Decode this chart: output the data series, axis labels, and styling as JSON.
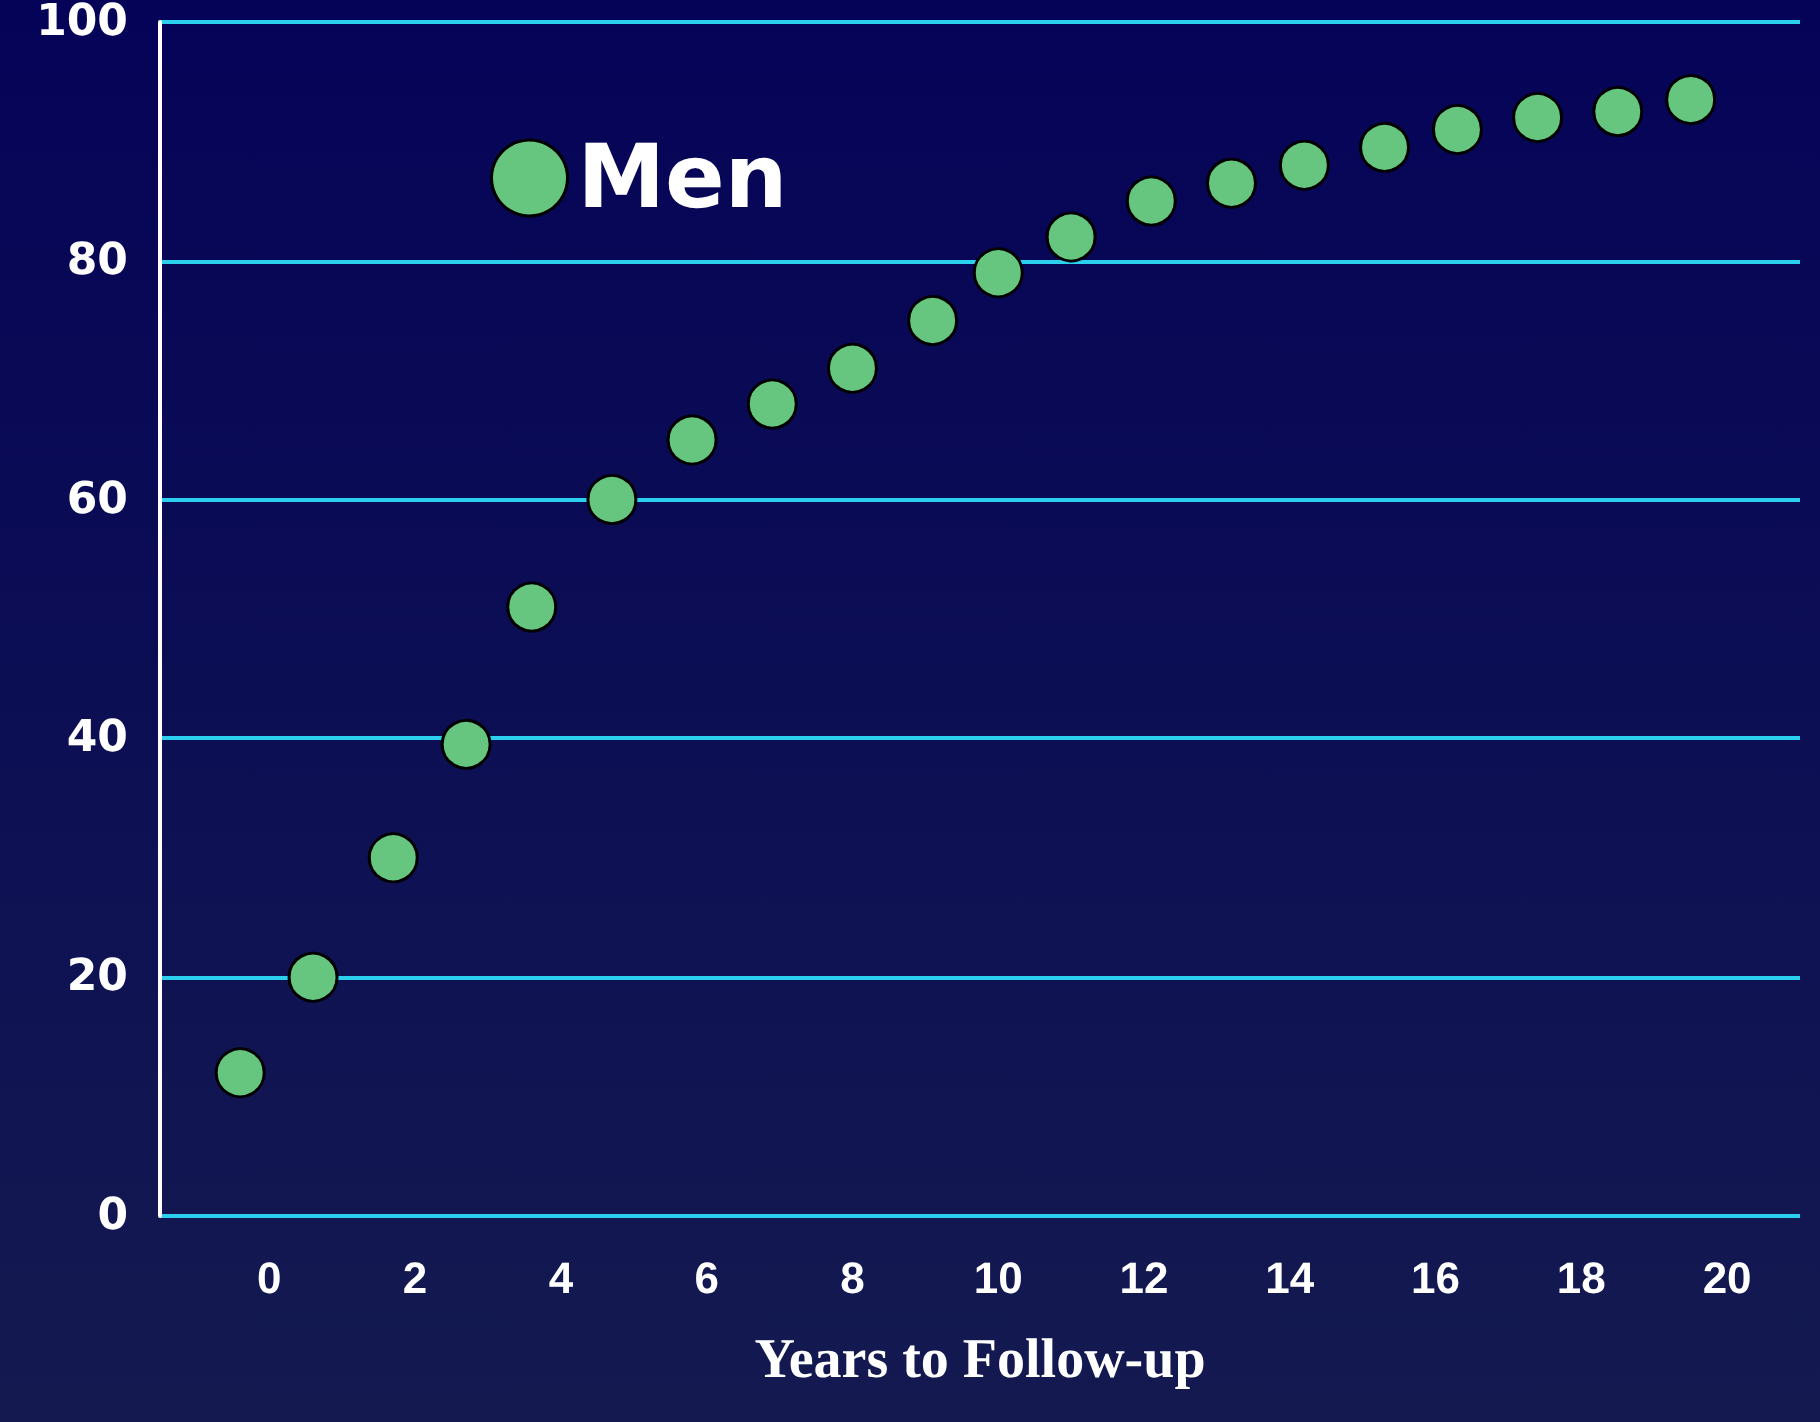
{
  "chart_data": {
    "type": "scatter",
    "xlabel": "Years to Follow-up",
    "x": [
      -0.4,
      0.6,
      1.7,
      2.7,
      3.6,
      4.7,
      5.8,
      6.9,
      8,
      9.1,
      10,
      11,
      12.1,
      13.2,
      14.2,
      15.3,
      16.3,
      17.4,
      18.5,
      19.5
    ],
    "series": [
      {
        "name": "Men",
        "color": "#66c67f",
        "values": [
          12,
          20,
          30,
          39.5,
          51,
          60,
          65,
          68,
          71,
          75,
          79,
          82,
          85,
          86.5,
          88,
          89.5,
          91,
          92,
          92.5,
          93.5
        ]
      }
    ],
    "xlim": [
      -1.5,
      21
    ],
    "xticks": [
      0,
      2,
      4,
      6,
      8,
      10,
      12,
      14,
      16,
      18,
      20
    ],
    "ylim": [
      0,
      100
    ],
    "yticks": [
      0,
      20,
      40,
      60,
      80,
      100
    ],
    "grid": "y",
    "legend": "top left",
    "marker": "circle"
  }
}
